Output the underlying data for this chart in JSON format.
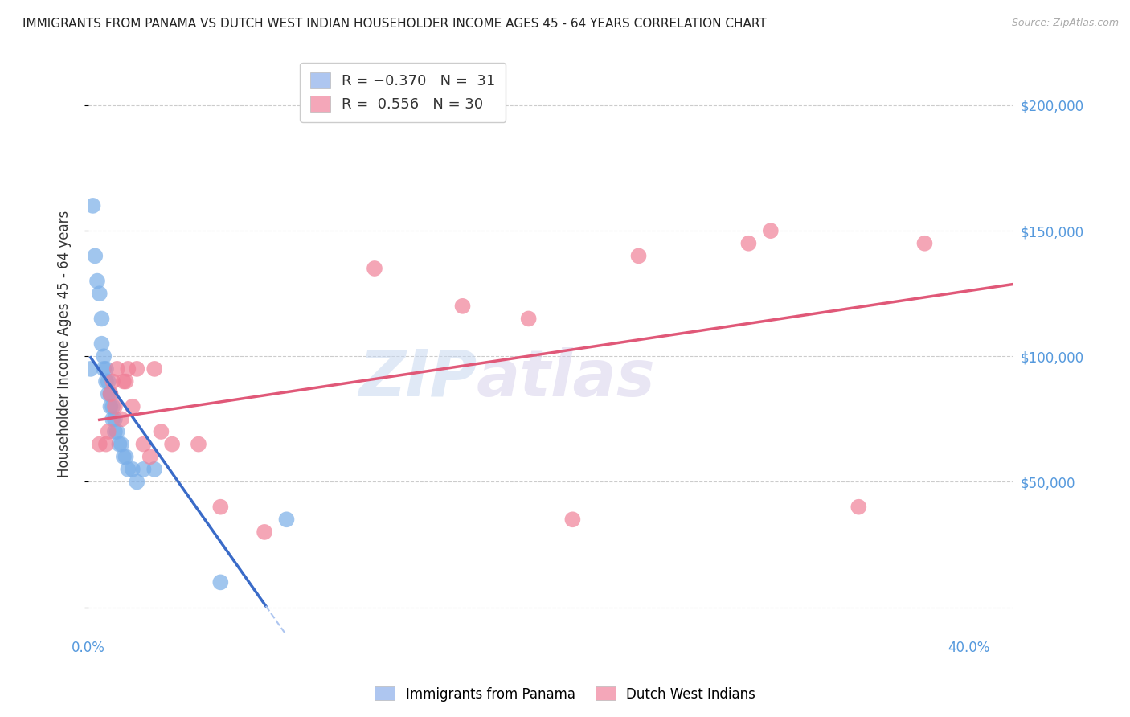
{
  "title": "IMMIGRANTS FROM PANAMA VS DUTCH WEST INDIAN HOUSEHOLDER INCOME AGES 45 - 64 YEARS CORRELATION CHART",
  "source": "Source: ZipAtlas.com",
  "ylabel": "Householder Income Ages 45 - 64 years",
  "xlim": [
    0.0,
    0.42
  ],
  "ylim": [
    -10000,
    220000
  ],
  "xticks": [
    0.0,
    0.05,
    0.1,
    0.15,
    0.2,
    0.25,
    0.3,
    0.35,
    0.4
  ],
  "xticklabels": [
    "0.0%",
    "",
    "",
    "",
    "",
    "",
    "",
    "",
    "40.0%"
  ],
  "yticks": [
    0,
    50000,
    100000,
    150000,
    200000
  ],
  "yticklabels": [
    "",
    "$50,000",
    "$100,000",
    "$150,000",
    "$200,000"
  ],
  "legend_color1": "#aec6f0",
  "legend_color2": "#f4a7b9",
  "blue_scatter_color": "#7aaee8",
  "pink_scatter_color": "#f08098",
  "blue_line_color": "#3a6bc8",
  "pink_line_color": "#e05878",
  "dashed_line_color": "#aec6f0",
  "watermark_zip": "ZIP",
  "watermark_atlas": "atlas",
  "panama_x": [
    0.001,
    0.002,
    0.003,
    0.004,
    0.005,
    0.006,
    0.006,
    0.007,
    0.007,
    0.008,
    0.008,
    0.009,
    0.009,
    0.01,
    0.01,
    0.011,
    0.011,
    0.012,
    0.012,
    0.013,
    0.014,
    0.015,
    0.016,
    0.017,
    0.018,
    0.02,
    0.022,
    0.025,
    0.03,
    0.06,
    0.09
  ],
  "panama_y": [
    95000,
    160000,
    140000,
    130000,
    125000,
    115000,
    105000,
    100000,
    95000,
    95000,
    90000,
    90000,
    85000,
    85000,
    80000,
    80000,
    75000,
    75000,
    70000,
    70000,
    65000,
    65000,
    60000,
    60000,
    55000,
    55000,
    50000,
    55000,
    55000,
    10000,
    35000
  ],
  "dutch_x": [
    0.005,
    0.008,
    0.009,
    0.01,
    0.011,
    0.012,
    0.013,
    0.015,
    0.016,
    0.017,
    0.018,
    0.02,
    0.022,
    0.025,
    0.028,
    0.03,
    0.033,
    0.038,
    0.05,
    0.06,
    0.08,
    0.13,
    0.17,
    0.2,
    0.22,
    0.25,
    0.3,
    0.31,
    0.35,
    0.38
  ],
  "dutch_y": [
    65000,
    65000,
    70000,
    85000,
    90000,
    80000,
    95000,
    75000,
    90000,
    90000,
    95000,
    80000,
    95000,
    65000,
    60000,
    95000,
    70000,
    65000,
    65000,
    40000,
    30000,
    135000,
    120000,
    115000,
    35000,
    140000,
    145000,
    150000,
    40000,
    145000
  ]
}
